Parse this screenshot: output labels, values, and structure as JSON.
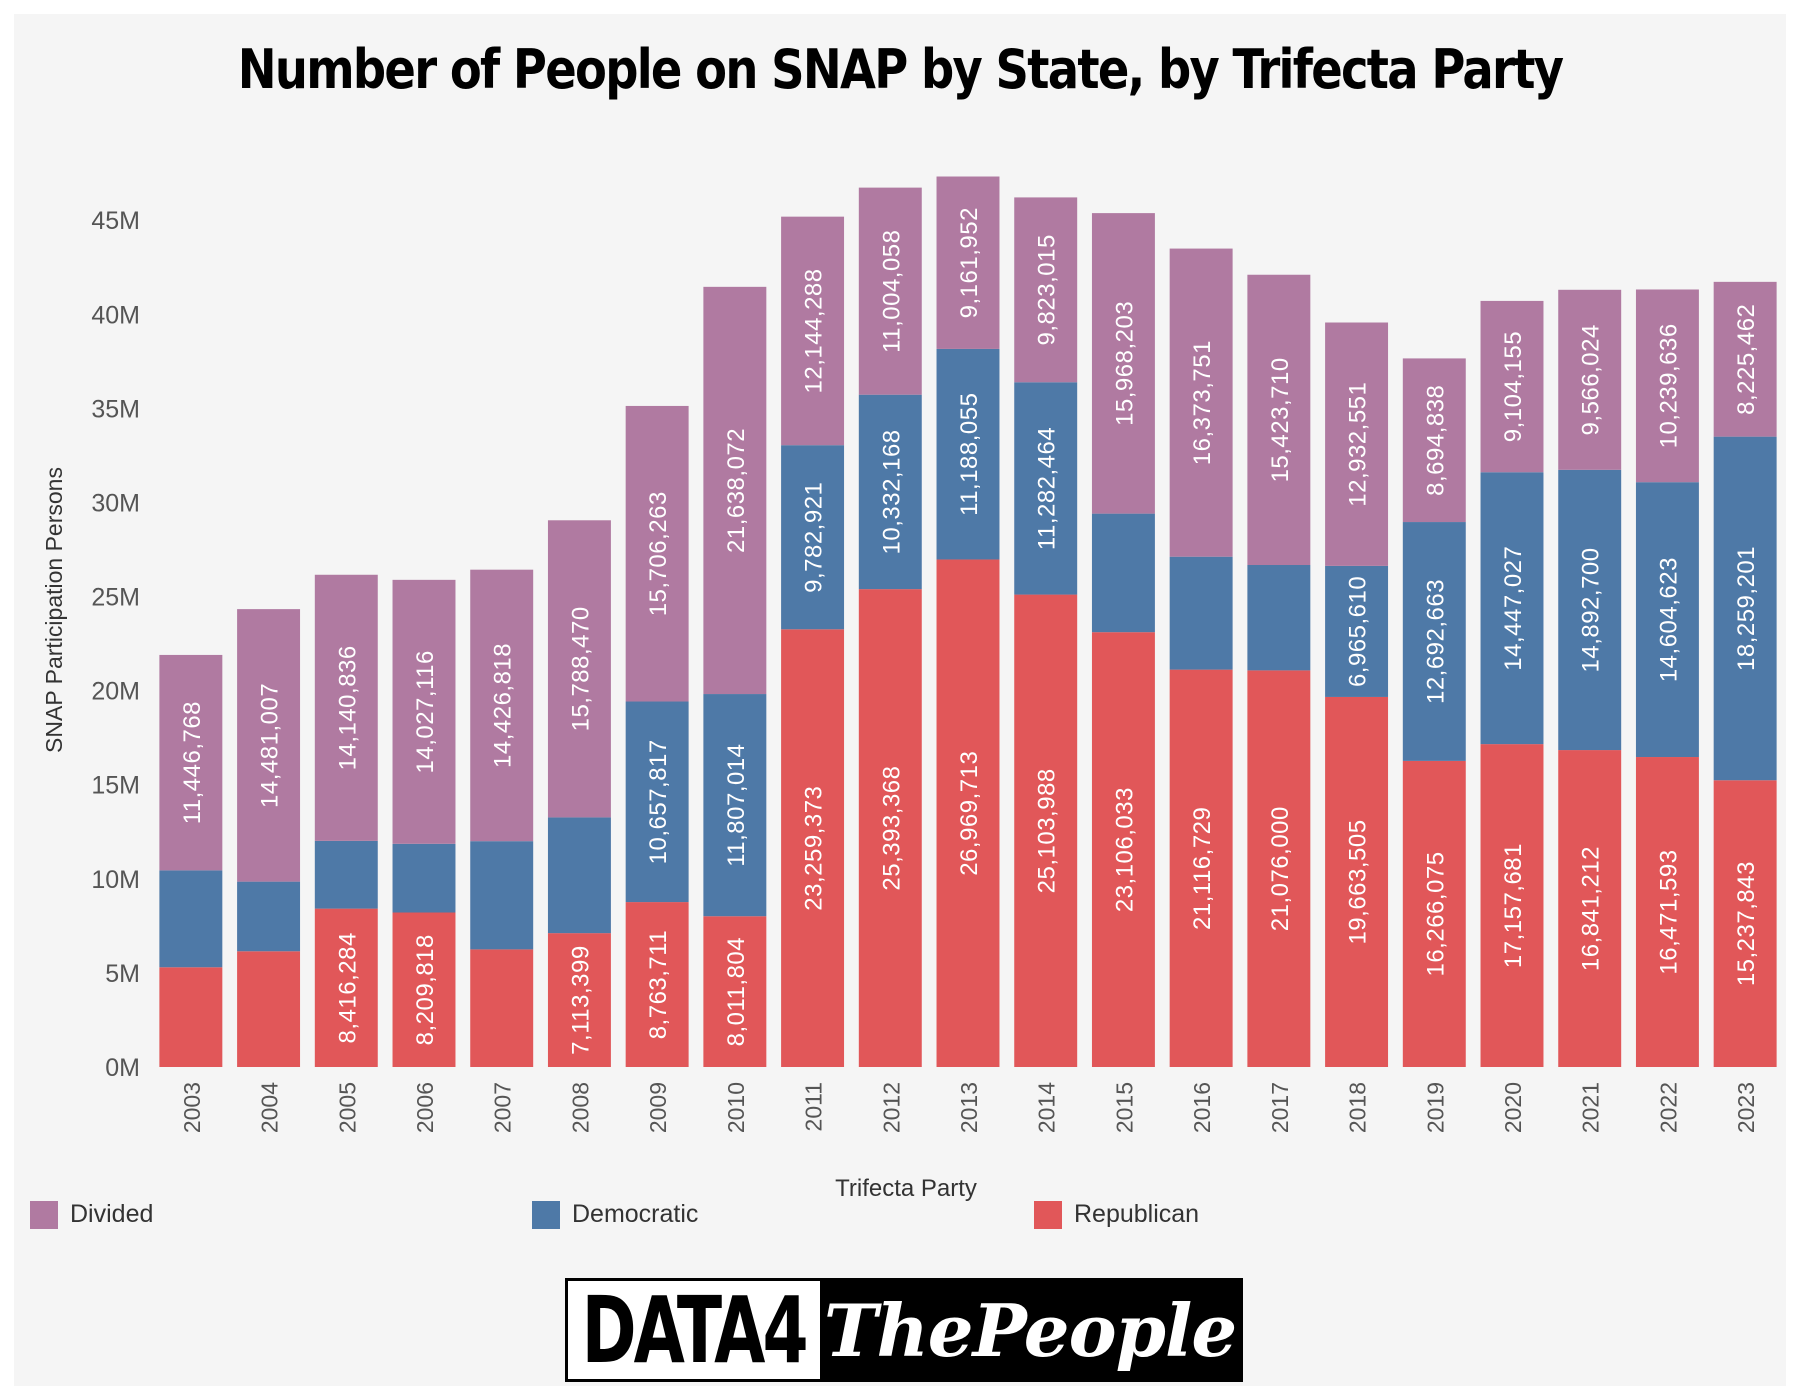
{
  "title": "Number of People on SNAP by State, by Trifecta Party",
  "brand": {
    "part1": "DATA4",
    "part2": "ThePeople"
  },
  "colors": {
    "Divided": "#b07aa1",
    "Democratic": "#4e79a7",
    "Republican": "#e15759"
  },
  "legend_items": [
    {
      "label": "Divided",
      "color": "#b07aa1"
    },
    {
      "label": "Democratic",
      "color": "#4e79a7"
    },
    {
      "label": "Republican",
      "color": "#e15759"
    }
  ],
  "chart_data": {
    "type": "bar",
    "stacked": true,
    "title": "Number of People on SNAP by State, by Trifecta Party",
    "xlabel": "Trifecta Party",
    "ylabel": "SNAP Participation Persons",
    "ylim": [
      0,
      47400000
    ],
    "yticks": [
      0,
      5000000,
      10000000,
      15000000,
      20000000,
      25000000,
      30000000,
      35000000,
      40000000,
      45000000
    ],
    "ytick_labels": [
      "0M",
      "5M",
      "10M",
      "15M",
      "20M",
      "25M",
      "30M",
      "35M",
      "40M",
      "45M"
    ],
    "categories": [
      "2003",
      "2004",
      "2005",
      "2006",
      "2007",
      "2008",
      "2009",
      "2010",
      "2011",
      "2012",
      "2013",
      "2014",
      "2015",
      "2016",
      "2017",
      "2018",
      "2019",
      "2020",
      "2021",
      "2022",
      "2023"
    ],
    "series": [
      {
        "name": "Republican",
        "values": [
          5300000,
          6150000,
          8416284,
          8209818,
          6250000,
          7113399,
          8763711,
          8011804,
          23259373,
          25393368,
          26969713,
          25103988,
          23106033,
          21116729,
          21076000,
          19663505,
          16266075,
          17157681,
          16841212,
          16471593,
          15237843
        ],
        "labels": [
          "",
          "",
          "8,416,284",
          "8,209,818",
          "",
          "7,113,399",
          "8,763,711",
          "8,011,804",
          "23,259,373",
          "25,393,368",
          "26,969,713",
          "25,103,988",
          "23,106,033",
          "21,116,729",
          "21,076,000",
          "19,663,505",
          "16,266,075",
          "17,157,681",
          "16,841,212",
          "16,471,593",
          "15,237,843"
        ]
      },
      {
        "name": "Democratic",
        "values": [
          5150000,
          3700000,
          3600000,
          3650000,
          5750000,
          6150000,
          10657817,
          11807014,
          9782921,
          10332168,
          11188055,
          11282464,
          6300000,
          6000000,
          5600000,
          6965610,
          12692663,
          14447027,
          14892700,
          14604623,
          18259201
        ],
        "labels": [
          "",
          "",
          "",
          "",
          "",
          "",
          "10,657,817",
          "11,807,014",
          "9,782,921",
          "10,332,168",
          "11,188,055",
          "11,282,464",
          "",
          "",
          "",
          "6,965,610",
          "12,692,663",
          "14,447,027",
          "14,892,700",
          "14,604,623",
          "18,259,201"
        ]
      },
      {
        "name": "Divided",
        "values": [
          11446768,
          14481007,
          14140836,
          14027116,
          14426818,
          15788470,
          15706263,
          21638072,
          12144288,
          11004058,
          9161952,
          9823015,
          15968203,
          16373751,
          15423710,
          12932551,
          8694838,
          9104155,
          9566024,
          10239636,
          8225462
        ],
        "labels": [
          "11,446,768",
          "14,481,007",
          "14,140,836",
          "14,027,116",
          "14,426,818",
          "15,788,470",
          "15,706,263",
          "21,638,072",
          "12,144,288",
          "11,004,058",
          "9,161,952",
          "9,823,015",
          "15,968,203",
          "16,373,751",
          "15,423,710",
          "12,932,551",
          "8,694,838",
          "9,104,155",
          "9,566,024",
          "10,239,636",
          "8,225,462"
        ]
      }
    ],
    "legend_position": "bottom",
    "grid": false
  }
}
